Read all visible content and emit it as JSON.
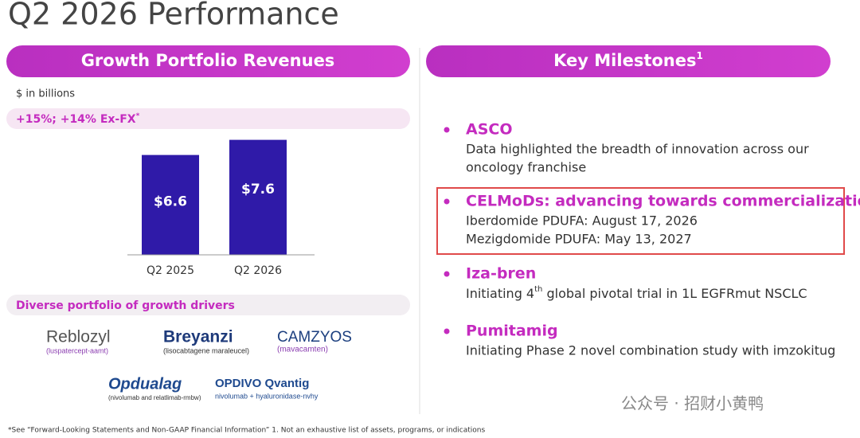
{
  "title": "Q2 2026 Performance",
  "chart_data": {
    "type": "bar",
    "title": "Growth Portfolio Revenues",
    "subtitle": "$ in billions",
    "growth": "+15%; +14% Ex-FX",
    "growth_mark": "*",
    "categories": [
      "Q2 2025",
      "Q2 2026"
    ],
    "values": [
      6.6,
      7.6
    ],
    "value_labels": [
      "$6.6",
      "$7.6"
    ],
    "color": "#2f1aa8",
    "ylim": [
      0,
      8
    ]
  },
  "portfolio": {
    "heading": "Diverse portfolio of growth drivers",
    "brands": [
      {
        "name": "Reblozyl",
        "generic": "(luspatercept-aamt)"
      },
      {
        "name": "Breyanzi",
        "generic": "(lisocabtagene maraleucel)"
      },
      {
        "name": "CAMZYOS",
        "generic": "(mavacamten)"
      },
      {
        "name": "Opdualag",
        "generic": "(nivolumab and relatlimab-rmbw)"
      },
      {
        "name": "OPDIVO Qvantig",
        "generic": "nivolumab + hyaluronidase-nvhy"
      }
    ]
  },
  "milestones": {
    "heading": "Key Milestones",
    "heading_note": "1",
    "items": [
      {
        "title": "ASCO",
        "lines": [
          "Data highlighted the breadth of innovation across our",
          "oncology franchise"
        ]
      },
      {
        "title": "CELMoDs: advancing towards commercialization",
        "lines": [
          "Iberdomide PDUFA: August 17, 2026",
          "Mezigdomide PDUFA: May 13, 2027"
        ]
      },
      {
        "title": "Iza-bren",
        "lines": [
          [
            "Initiating 4",
            "th",
            " global pivotal trial in 1L EGFRmut NSCLC"
          ]
        ]
      },
      {
        "title": "Pumitamig",
        "lines": [
          "Initiating Phase 2 novel combination study with imzokitug"
        ]
      }
    ]
  },
  "footnote": "*See “Forward-Looking Statements and Non-GAAP Financial Information” 1. Not an exhaustive list of assets, programs, or indications",
  "watermark": "公众号 · 招财小黄鸭"
}
